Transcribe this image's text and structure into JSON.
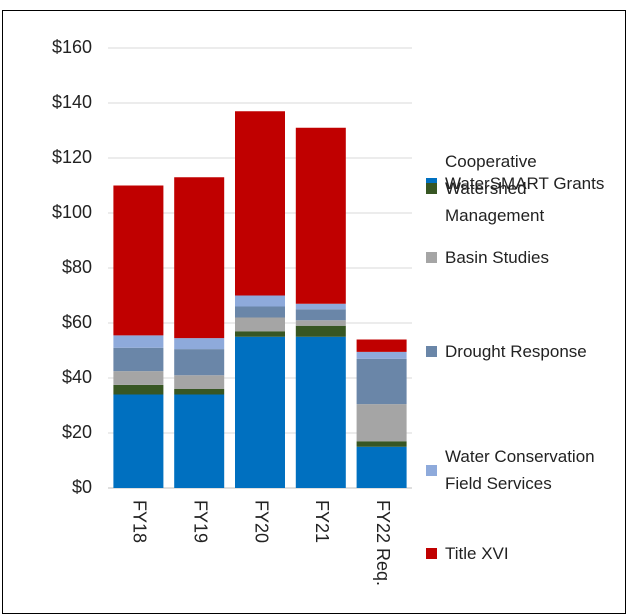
{
  "chart_data": {
    "type": "stacked_bar",
    "categories": [
      "FY18",
      "FY19",
      "FY20",
      "FY21",
      "FY22 Req."
    ],
    "series": [
      {
        "name": "WaterSMART Grants",
        "color": "#0070c0",
        "values": [
          34,
          34,
          55,
          55,
          15
        ]
      },
      {
        "name": "Cooperative Watershed Management",
        "color": "#375623",
        "values": [
          3.5,
          2,
          2,
          4,
          2
        ]
      },
      {
        "name": "Basin Studies",
        "color": "#a5a5a5",
        "values": [
          5,
          5,
          5,
          2,
          13.5
        ]
      },
      {
        "name": "Drought Response",
        "color": "#6a86a8",
        "values": [
          8.5,
          9.5,
          4,
          4,
          16.5
        ]
      },
      {
        "name": "Water Conservation Field Services",
        "color": "#8eaadb",
        "values": [
          4.5,
          4,
          4,
          2,
          2.5
        ]
      },
      {
        "name": "Title XVI",
        "color": "#c00000",
        "values": [
          54.5,
          58.5,
          67,
          64,
          4.5
        ]
      }
    ],
    "ylim": [
      0,
      160
    ],
    "yticks": [
      {
        "value": 0,
        "label": "$0"
      },
      {
        "value": 20,
        "label": "$20"
      },
      {
        "value": 40,
        "label": "$40"
      },
      {
        "value": 60,
        "label": "$60"
      },
      {
        "value": 80,
        "label": "$80"
      },
      {
        "value": 100,
        "label": "$100"
      },
      {
        "value": 120,
        "label": "$120"
      },
      {
        "value": 140,
        "label": "$140"
      },
      {
        "value": 160,
        "label": "$160"
      }
    ],
    "grid": true,
    "legend": "right"
  }
}
